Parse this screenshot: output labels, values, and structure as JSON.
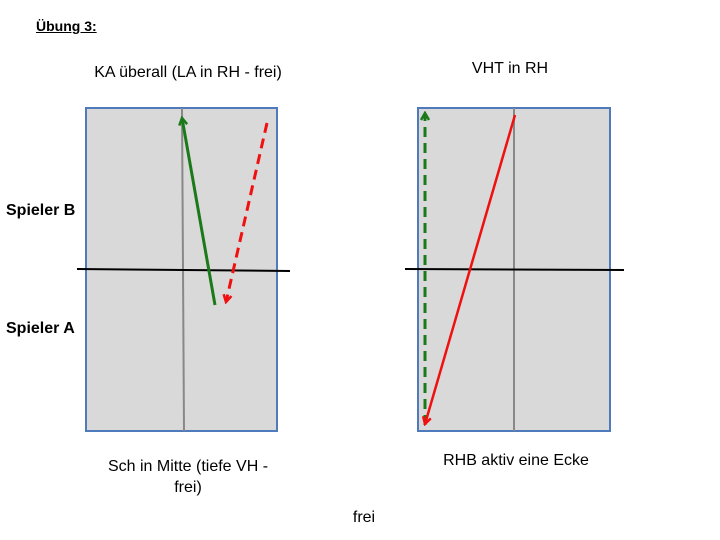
{
  "header": {
    "title": "Übung 3:"
  },
  "players": {
    "top": "Spieler B",
    "bottom": "Spieler A"
  },
  "diagrams": [
    {
      "top_label": "KA überall (LA in RH - frei)",
      "bottom_label": "Sch in Mitte (tiefe VH - frei)"
    },
    {
      "top_label": "VHT in RH",
      "bottom_label": "RHB aktiv eine Ecke"
    }
  ],
  "footer": "frei"
}
